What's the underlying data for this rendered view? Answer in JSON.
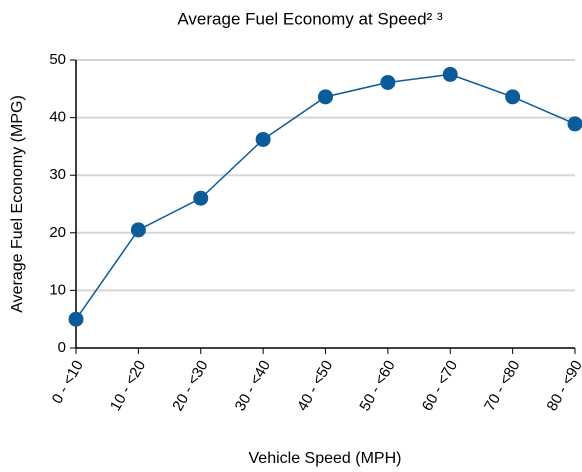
{
  "chart_data": {
    "type": "line",
    "title": "Average Fuel Economy at Speed² ³",
    "x_label": "Vehicle Speed (MPH)",
    "y_label": "Average Fuel Economy (MPG)",
    "categories": [
      "0 - <10",
      "10 - <20",
      "20 - <30",
      "30 - <40",
      "40 - <50",
      "50 - <60",
      "60 - <70",
      "70 - <80",
      "80 - <90"
    ],
    "series": [
      {
        "name": "Average Fuel Economy",
        "color": "#0b5c99",
        "values": [
          5,
          20.5,
          26,
          36.2,
          43.6,
          46.1,
          47.5,
          43.6,
          38.9
        ]
      }
    ],
    "ylim": [
      0,
      50
    ],
    "yticks": [
      0,
      10,
      20,
      30,
      40,
      50
    ],
    "grid": true
  }
}
